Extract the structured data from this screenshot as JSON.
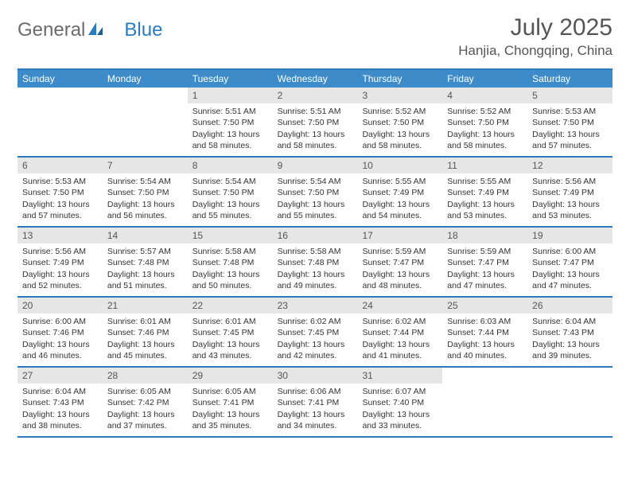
{
  "brand": {
    "name1": "General",
    "name2": "Blue"
  },
  "title": "July 2025",
  "location": "Hanjia, Chongqing, China",
  "colors": {
    "accent": "#2b7bbf",
    "header_bg": "#3d8cc9",
    "daynum_bg": "#e6e6e6",
    "text": "#333333",
    "muted": "#555555"
  },
  "day_names": [
    "Sunday",
    "Monday",
    "Tuesday",
    "Wednesday",
    "Thursday",
    "Friday",
    "Saturday"
  ],
  "weeks": [
    [
      null,
      null,
      {
        "n": "1",
        "sr": "5:51 AM",
        "ss": "7:50 PM",
        "dl": "13 hours and 58 minutes."
      },
      {
        "n": "2",
        "sr": "5:51 AM",
        "ss": "7:50 PM",
        "dl": "13 hours and 58 minutes."
      },
      {
        "n": "3",
        "sr": "5:52 AM",
        "ss": "7:50 PM",
        "dl": "13 hours and 58 minutes."
      },
      {
        "n": "4",
        "sr": "5:52 AM",
        "ss": "7:50 PM",
        "dl": "13 hours and 58 minutes."
      },
      {
        "n": "5",
        "sr": "5:53 AM",
        "ss": "7:50 PM",
        "dl": "13 hours and 57 minutes."
      }
    ],
    [
      {
        "n": "6",
        "sr": "5:53 AM",
        "ss": "7:50 PM",
        "dl": "13 hours and 57 minutes."
      },
      {
        "n": "7",
        "sr": "5:54 AM",
        "ss": "7:50 PM",
        "dl": "13 hours and 56 minutes."
      },
      {
        "n": "8",
        "sr": "5:54 AM",
        "ss": "7:50 PM",
        "dl": "13 hours and 55 minutes."
      },
      {
        "n": "9",
        "sr": "5:54 AM",
        "ss": "7:50 PM",
        "dl": "13 hours and 55 minutes."
      },
      {
        "n": "10",
        "sr": "5:55 AM",
        "ss": "7:49 PM",
        "dl": "13 hours and 54 minutes."
      },
      {
        "n": "11",
        "sr": "5:55 AM",
        "ss": "7:49 PM",
        "dl": "13 hours and 53 minutes."
      },
      {
        "n": "12",
        "sr": "5:56 AM",
        "ss": "7:49 PM",
        "dl": "13 hours and 53 minutes."
      }
    ],
    [
      {
        "n": "13",
        "sr": "5:56 AM",
        "ss": "7:49 PM",
        "dl": "13 hours and 52 minutes."
      },
      {
        "n": "14",
        "sr": "5:57 AM",
        "ss": "7:48 PM",
        "dl": "13 hours and 51 minutes."
      },
      {
        "n": "15",
        "sr": "5:58 AM",
        "ss": "7:48 PM",
        "dl": "13 hours and 50 minutes."
      },
      {
        "n": "16",
        "sr": "5:58 AM",
        "ss": "7:48 PM",
        "dl": "13 hours and 49 minutes."
      },
      {
        "n": "17",
        "sr": "5:59 AM",
        "ss": "7:47 PM",
        "dl": "13 hours and 48 minutes."
      },
      {
        "n": "18",
        "sr": "5:59 AM",
        "ss": "7:47 PM",
        "dl": "13 hours and 47 minutes."
      },
      {
        "n": "19",
        "sr": "6:00 AM",
        "ss": "7:47 PM",
        "dl": "13 hours and 47 minutes."
      }
    ],
    [
      {
        "n": "20",
        "sr": "6:00 AM",
        "ss": "7:46 PM",
        "dl": "13 hours and 46 minutes."
      },
      {
        "n": "21",
        "sr": "6:01 AM",
        "ss": "7:46 PM",
        "dl": "13 hours and 45 minutes."
      },
      {
        "n": "22",
        "sr": "6:01 AM",
        "ss": "7:45 PM",
        "dl": "13 hours and 43 minutes."
      },
      {
        "n": "23",
        "sr": "6:02 AM",
        "ss": "7:45 PM",
        "dl": "13 hours and 42 minutes."
      },
      {
        "n": "24",
        "sr": "6:02 AM",
        "ss": "7:44 PM",
        "dl": "13 hours and 41 minutes."
      },
      {
        "n": "25",
        "sr": "6:03 AM",
        "ss": "7:44 PM",
        "dl": "13 hours and 40 minutes."
      },
      {
        "n": "26",
        "sr": "6:04 AM",
        "ss": "7:43 PM",
        "dl": "13 hours and 39 minutes."
      }
    ],
    [
      {
        "n": "27",
        "sr": "6:04 AM",
        "ss": "7:43 PM",
        "dl": "13 hours and 38 minutes."
      },
      {
        "n": "28",
        "sr": "6:05 AM",
        "ss": "7:42 PM",
        "dl": "13 hours and 37 minutes."
      },
      {
        "n": "29",
        "sr": "6:05 AM",
        "ss": "7:41 PM",
        "dl": "13 hours and 35 minutes."
      },
      {
        "n": "30",
        "sr": "6:06 AM",
        "ss": "7:41 PM",
        "dl": "13 hours and 34 minutes."
      },
      {
        "n": "31",
        "sr": "6:07 AM",
        "ss": "7:40 PM",
        "dl": "13 hours and 33 minutes."
      },
      null,
      null
    ]
  ],
  "labels": {
    "sunrise": "Sunrise:",
    "sunset": "Sunset:",
    "daylight": "Daylight:"
  }
}
